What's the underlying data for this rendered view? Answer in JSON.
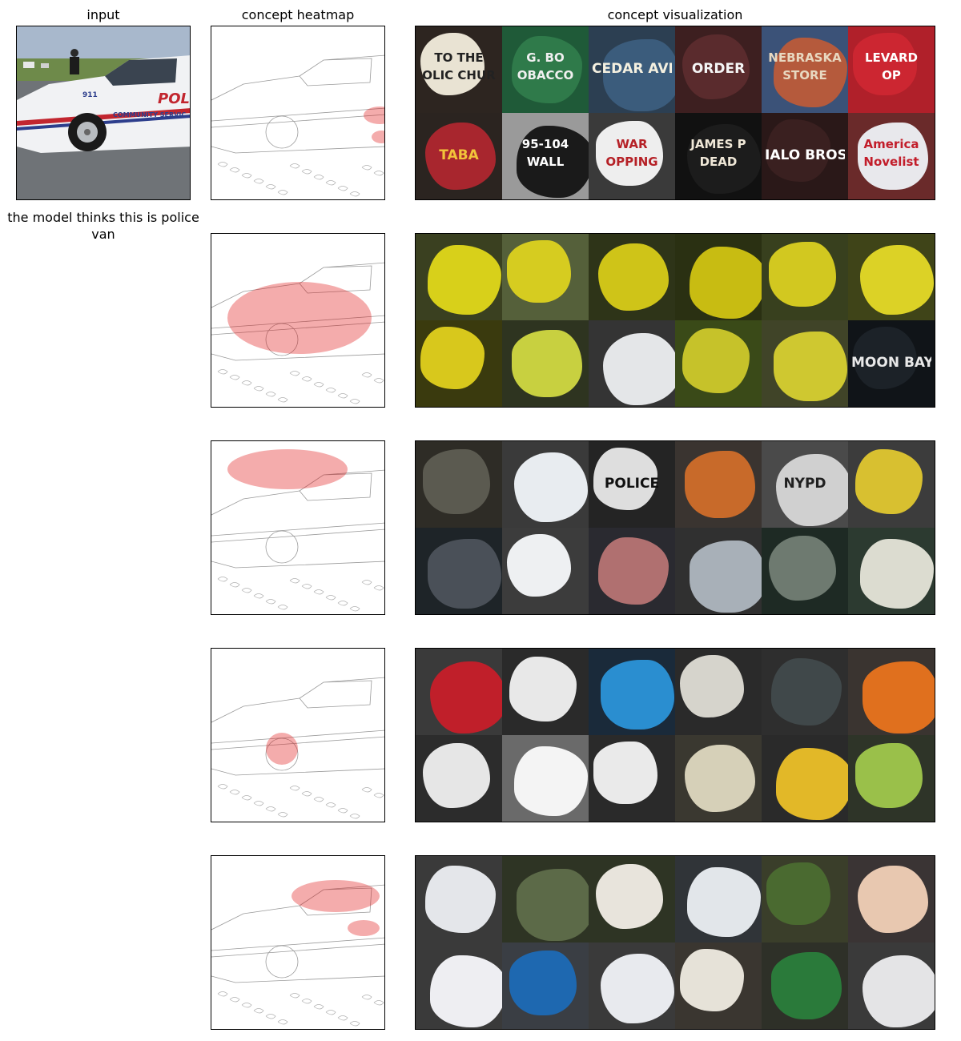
{
  "titles": {
    "input": "input",
    "heatmap": "concept heatmap",
    "visualization": "concept visualization"
  },
  "prediction": "the model thinks this is police van",
  "input_image": {
    "scene": "white police van",
    "texts": [
      "911",
      "POLI",
      "COMMUNITY SERVIC"
    ],
    "colors": {
      "body": "#f1f2f4",
      "stripe_red": "#c2262f",
      "stripe_blue": "#2d3e8c",
      "road": "#6f7377",
      "grass": "#6e8a4a",
      "sky": "#a8b8cc"
    }
  },
  "heat_color": "#e01010",
  "concepts": [
    {
      "heat_focus": "police lettering on the rear side",
      "tiles": [
        {
          "bg": "#2d2520",
          "blob": "#e9e3d3",
          "text": "TO THE\nOLIC CHUR",
          "textColor": "#222"
        },
        {
          "bg": "#1f5a38",
          "blob": "#2f7a4a",
          "text": "G. BO\nOBACCO",
          "textColor": "#f0f0f0"
        },
        {
          "bg": "#2c3f52",
          "blob": "#3b5c7c",
          "text": "CEDAR AVE",
          "textColor": "#f4f0e0"
        },
        {
          "bg": "#3d1f20",
          "blob": "#5a2b2d",
          "text": "ORDER",
          "textColor": "#f5f5f5"
        },
        {
          "bg": "#3b5278",
          "blob": "#b55a3c",
          "text": "NEBRASKA\nSTORE",
          "textColor": "#e8d8c0"
        },
        {
          "bg": "#b0202a",
          "blob": "#cc2631",
          "text": "LEVARD\nOP",
          "textColor": "#ffffff"
        },
        {
          "bg": "#2b2420",
          "blob": "#a8262e",
          "text": "TABA",
          "textColor": "#f2c43a"
        },
        {
          "bg": "#9a9a9a",
          "blob": "#1a1a1a",
          "text": "95-104\nWALL",
          "textColor": "#ffffff"
        },
        {
          "bg": "#3a3a3a",
          "blob": "#eeeeee",
          "text": "WAR\nOPPING",
          "textColor": "#b52026"
        },
        {
          "bg": "#111111",
          "blob": "#1c1c1c",
          "text": "JAMES P\nDEAD",
          "textColor": "#f0e8d8"
        },
        {
          "bg": "#2a1818",
          "blob": "#3a2020",
          "text": "IALO BROS. BA",
          "textColor": "#ffffff"
        },
        {
          "bg": "#6a2a2a",
          "blob": "#e8e8ec",
          "text": "America\nNovelist",
          "textColor": "#c21d2a"
        }
      ]
    },
    {
      "heat_focus": "whole vehicle body",
      "tiles": [
        {
          "bg": "#3a4020",
          "blob": "#d8d01a",
          "text": "",
          "textColor": "#000"
        },
        {
          "bg": "#55603a",
          "blob": "#d6cc20",
          "text": "",
          "textColor": "#000"
        },
        {
          "bg": "#2e3418",
          "blob": "#cfc418",
          "text": "",
          "textColor": "#000"
        },
        {
          "bg": "#2a3012",
          "blob": "#c8bc12",
          "text": "",
          "textColor": "#000"
        },
        {
          "bg": "#38401e",
          "blob": "#d2c820",
          "text": "",
          "textColor": "#000"
        },
        {
          "bg": "#3f4418",
          "blob": "#dcd226",
          "text": "",
          "textColor": "#000"
        },
        {
          "bg": "#3a3a0e",
          "blob": "#d8c81c",
          "text": "",
          "textColor": "#000"
        },
        {
          "bg": "#2e3420",
          "blob": "#c8d040",
          "text": "",
          "textColor": "#000"
        },
        {
          "bg": "#343434",
          "blob": "#e4e6e8",
          "text": "",
          "textColor": "#000"
        },
        {
          "bg": "#3a4a18",
          "blob": "#c6c22a",
          "text": "",
          "textColor": "#000"
        },
        {
          "bg": "#404428",
          "blob": "#cfc830",
          "text": "",
          "textColor": "#000"
        },
        {
          "bg": "#101418",
          "blob": "#1c2228",
          "text": "MOON BAY POLICE",
          "textColor": "#e8e8e8"
        }
      ]
    },
    {
      "heat_focus": "roof lights and windows",
      "tiles": [
        {
          "bg": "#2e2c26",
          "blob": "#5b5a50",
          "text": "",
          "textColor": "#000"
        },
        {
          "bg": "#3a3a3a",
          "blob": "#e8ecf0",
          "text": "",
          "textColor": "#000"
        },
        {
          "bg": "#242424",
          "blob": "#dedede",
          "text": "POLICE",
          "textColor": "#101010"
        },
        {
          "bg": "#3a3430",
          "blob": "#c86a2a",
          "text": "",
          "textColor": "#000"
        },
        {
          "bg": "#4a4a4a",
          "blob": "#d0d0d0",
          "text": "NYPD",
          "textColor": "#202020"
        },
        {
          "bg": "#3c3c3c",
          "blob": "#d8c030",
          "text": "",
          "textColor": "#000"
        },
        {
          "bg": "#1e2428",
          "blob": "#4a5058",
          "text": "",
          "textColor": "#000"
        },
        {
          "bg": "#3c3c3c",
          "blob": "#eef0f2",
          "text": "",
          "textColor": "#000"
        },
        {
          "bg": "#2a2a30",
          "blob": "#b07070",
          "text": "",
          "textColor": "#000"
        },
        {
          "bg": "#303030",
          "blob": "#a8b0b8",
          "text": "",
          "textColor": "#000"
        },
        {
          "bg": "#1e2a24",
          "blob": "#6e7a70",
          "text": "",
          "textColor": "#000"
        },
        {
          "bg": "#2c3a30",
          "blob": "#dcdcd0",
          "text": "",
          "textColor": "#000"
        }
      ]
    },
    {
      "heat_focus": "front wheel",
      "tiles": [
        {
          "bg": "#3a3a3a",
          "blob": "#c01f2a",
          "text": "",
          "textColor": "#000"
        },
        {
          "bg": "#2a2a2a",
          "blob": "#e8e8e8",
          "text": "",
          "textColor": "#000"
        },
        {
          "bg": "#1a2a3a",
          "blob": "#2a8ed0",
          "text": "",
          "textColor": "#000"
        },
        {
          "bg": "#2a2a2a",
          "blob": "#d6d4cc",
          "text": "",
          "textColor": "#000"
        },
        {
          "bg": "#2e2e2e",
          "blob": "#40484a",
          "text": "",
          "textColor": "#000"
        },
        {
          "bg": "#3a3430",
          "blob": "#e0701e",
          "text": "",
          "textColor": "#000"
        },
        {
          "bg": "#2c2c2c",
          "blob": "#e6e6e6",
          "text": "",
          "textColor": "#000"
        },
        {
          "bg": "#6a6a6a",
          "blob": "#f4f4f4",
          "text": "",
          "textColor": "#000"
        },
        {
          "bg": "#2a2a2a",
          "blob": "#eaeaea",
          "text": "",
          "textColor": "#000"
        },
        {
          "bg": "#3a3830",
          "blob": "#d6d0b8",
          "text": "",
          "textColor": "#000"
        },
        {
          "bg": "#2a2a2a",
          "blob": "#e2b828",
          "text": "",
          "textColor": "#000"
        },
        {
          "bg": "#2e3428",
          "blob": "#9ac04a",
          "text": "",
          "textColor": "#000"
        }
      ]
    },
    {
      "heat_focus": "upper body and rear lettering",
      "tiles": [
        {
          "bg": "#3a3a3a",
          "blob": "#e4e6ea",
          "text": "",
          "textColor": "#000"
        },
        {
          "bg": "#2e3424",
          "blob": "#5c6a48",
          "text": "",
          "textColor": "#000"
        },
        {
          "bg": "#2e3424",
          "blob": "#e8e4dc",
          "text": "",
          "textColor": "#000"
        },
        {
          "bg": "#303438",
          "blob": "#e2e6ea",
          "text": "",
          "textColor": "#000"
        },
        {
          "bg": "#3a3e2a",
          "blob": "#4a6a30",
          "text": "",
          "textColor": "#000"
        },
        {
          "bg": "#3a3434",
          "blob": "#e8c8b0",
          "text": "",
          "textColor": "#000"
        },
        {
          "bg": "#3a3a3a",
          "blob": "#eeeef2",
          "text": "",
          "textColor": "#000"
        },
        {
          "bg": "#3a3e44",
          "blob": "#1e68b0",
          "text": "",
          "textColor": "#000"
        },
        {
          "bg": "#3a3a3a",
          "blob": "#e8eaee",
          "text": "",
          "textColor": "#000"
        },
        {
          "bg": "#3a3630",
          "blob": "#e6e2d8",
          "text": "",
          "textColor": "#000"
        },
        {
          "bg": "#2e3028",
          "blob": "#2a7a3a",
          "text": "",
          "textColor": "#000"
        },
        {
          "bg": "#3a3a3a",
          "blob": "#e4e4e6",
          "text": "",
          "textColor": "#000"
        }
      ]
    }
  ]
}
